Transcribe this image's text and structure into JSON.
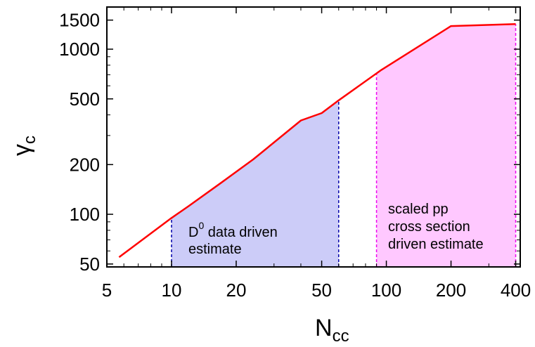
{
  "chart_data": {
    "type": "line",
    "title": "",
    "xlabel": {
      "main": "N",
      "sub": "cc"
    },
    "ylabel": {
      "main": "γ",
      "sub": "c"
    },
    "xscale": "log",
    "yscale": "log",
    "xlim": [
      5,
      420
    ],
    "ylim": [
      48,
      1800
    ],
    "xticks": [
      5,
      10,
      20,
      50,
      100,
      200,
      400
    ],
    "xtick_labels": [
      "5",
      "10",
      "20",
      "50",
      "100",
      "200",
      "400"
    ],
    "yticks": [
      50,
      100,
      200,
      500,
      1000,
      1500
    ],
    "ytick_labels": [
      "50",
      "100",
      "200",
      "500",
      "1000",
      "1500"
    ],
    "grid": false,
    "colors": {
      "line": "#ff0000",
      "data_region": "#ccccf8",
      "data_edge": "#0000aa",
      "pp_region": "#ffc8ff",
      "pp_edge": "#ee00ee"
    },
    "series": [
      {
        "x": [
          5.7,
          10,
          12,
          17,
          24,
          40,
          50,
          60,
          95,
          200,
          400
        ],
        "y": [
          55,
          95,
          112,
          155,
          215,
          370,
          410,
          490,
          750,
          1380,
          1420
        ]
      }
    ],
    "regions": [
      {
        "x_range": [
          10,
          60
        ],
        "label_lines": [
          "D",
          "0",
          " data driven",
          "estimate"
        ]
      },
      {
        "x_range": [
          90,
          400
        ],
        "label_lines": [
          "scaled pp",
          "cross section",
          "driven estimate"
        ]
      }
    ]
  }
}
